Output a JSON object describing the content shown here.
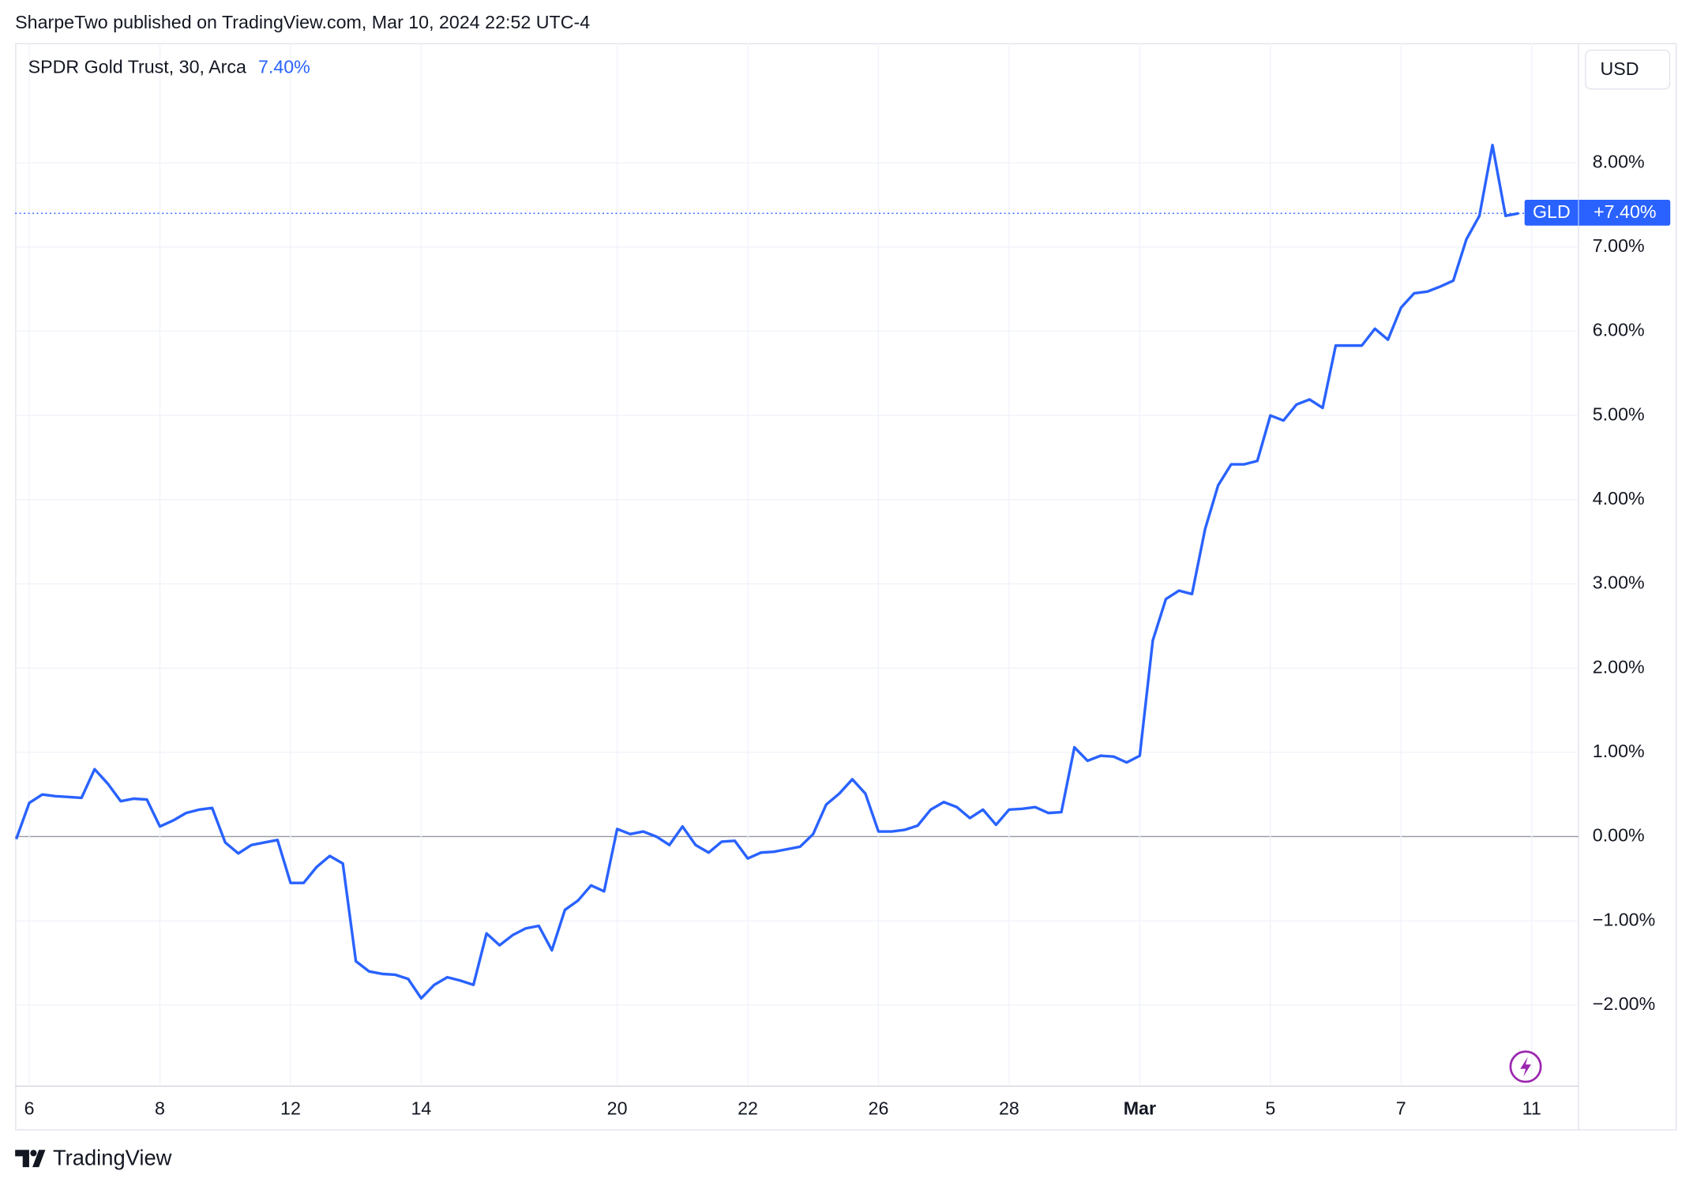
{
  "header": {
    "published": "SharpeTwo published on TradingView.com, Mar 10, 2024 22:52 UTC-4"
  },
  "footer": {
    "brand": "TradingView"
  },
  "chart_data": {
    "type": "line",
    "title": "SPDR Gold Trust, 30, Arca",
    "legend_value": "7.40%",
    "price_label": "+7.40%",
    "currency": "USD",
    "categories": [
      null,
      "6",
      null,
      null,
      null,
      null,
      null,
      null,
      null,
      null,
      null,
      "8",
      null,
      null,
      null,
      null,
      null,
      null,
      null,
      null,
      null,
      "12",
      null,
      null,
      null,
      null,
      null,
      null,
      null,
      null,
      null,
      "14",
      null,
      null,
      null,
      null,
      null,
      null,
      null,
      null,
      null,
      null,
      null,
      null,
      null,
      null,
      "20",
      null,
      null,
      null,
      null,
      null,
      null,
      null,
      null,
      null,
      "22",
      null,
      null,
      null,
      null,
      null,
      null,
      null,
      null,
      null,
      "26",
      null,
      null,
      null,
      null,
      null,
      null,
      null,
      null,
      null,
      "28",
      null,
      null,
      null,
      null,
      null,
      null,
      null,
      null,
      null,
      "Mar",
      null,
      null,
      null,
      null,
      null,
      null,
      null,
      null,
      null,
      "5",
      null,
      null,
      null,
      null,
      null,
      null,
      null,
      null,
      null,
      "7",
      null,
      null,
      null,
      null,
      null,
      null,
      null,
      null,
      null,
      "11"
    ],
    "series": [
      {
        "name": "GLD",
        "color": "#2962ff",
        "values": [
          -0.03,
          0.4,
          0.5,
          0.48,
          0.47,
          0.46,
          0.8,
          0.63,
          0.42,
          0.45,
          0.44,
          0.12,
          0.19,
          0.28,
          0.32,
          0.34,
          -0.07,
          -0.2,
          -0.1,
          -0.07,
          -0.04,
          -0.55,
          -0.55,
          -0.36,
          -0.23,
          -0.32,
          -1.48,
          -1.6,
          -1.63,
          -1.64,
          -1.69,
          -1.92,
          -1.76,
          -1.67,
          -1.71,
          -1.76,
          -1.15,
          -1.29,
          -1.17,
          -1.09,
          -1.06,
          -1.35,
          -0.87,
          -0.76,
          -0.58,
          -0.65,
          0.09,
          0.03,
          0.06,
          0.0,
          -0.1,
          0.12,
          -0.1,
          -0.19,
          -0.06,
          -0.05,
          -0.26,
          -0.19,
          -0.18,
          -0.15,
          -0.12,
          0.03,
          0.38,
          0.51,
          0.68,
          0.51,
          0.06,
          0.06,
          0.08,
          0.13,
          0.32,
          0.41,
          0.35,
          0.22,
          0.32,
          0.14,
          0.32,
          0.33,
          0.35,
          0.28,
          0.29,
          1.06,
          0.9,
          0.96,
          0.95,
          0.88,
          0.96,
          2.33,
          2.82,
          2.92,
          2.88,
          3.65,
          4.17,
          4.42,
          4.42,
          4.46,
          5.0,
          4.94,
          5.13,
          5.19,
          5.09,
          5.83,
          5.83,
          5.83,
          6.03,
          5.9,
          6.28,
          6.45,
          6.47,
          6.53,
          6.6,
          7.09,
          7.37,
          8.21,
          7.37,
          7.4,
          null
        ]
      }
    ],
    "ylim": [
      -2.95,
      9.42
    ],
    "yticks": [
      {
        "value": -2,
        "label": "−2.00%"
      },
      {
        "value": -1,
        "label": "−1.00%"
      },
      {
        "value": 0,
        "label": "0.00%"
      },
      {
        "value": 1,
        "label": "1.00%"
      },
      {
        "value": 2,
        "label": "2.00%"
      },
      {
        "value": 3,
        "label": "3.00%"
      },
      {
        "value": 4,
        "label": "4.00%"
      },
      {
        "value": 5,
        "label": "5.00%"
      },
      {
        "value": 6,
        "label": "6.00%"
      },
      {
        "value": 7,
        "label": "7.00%"
      },
      {
        "value": 8,
        "label": "8.00%"
      }
    ],
    "grid": true
  }
}
